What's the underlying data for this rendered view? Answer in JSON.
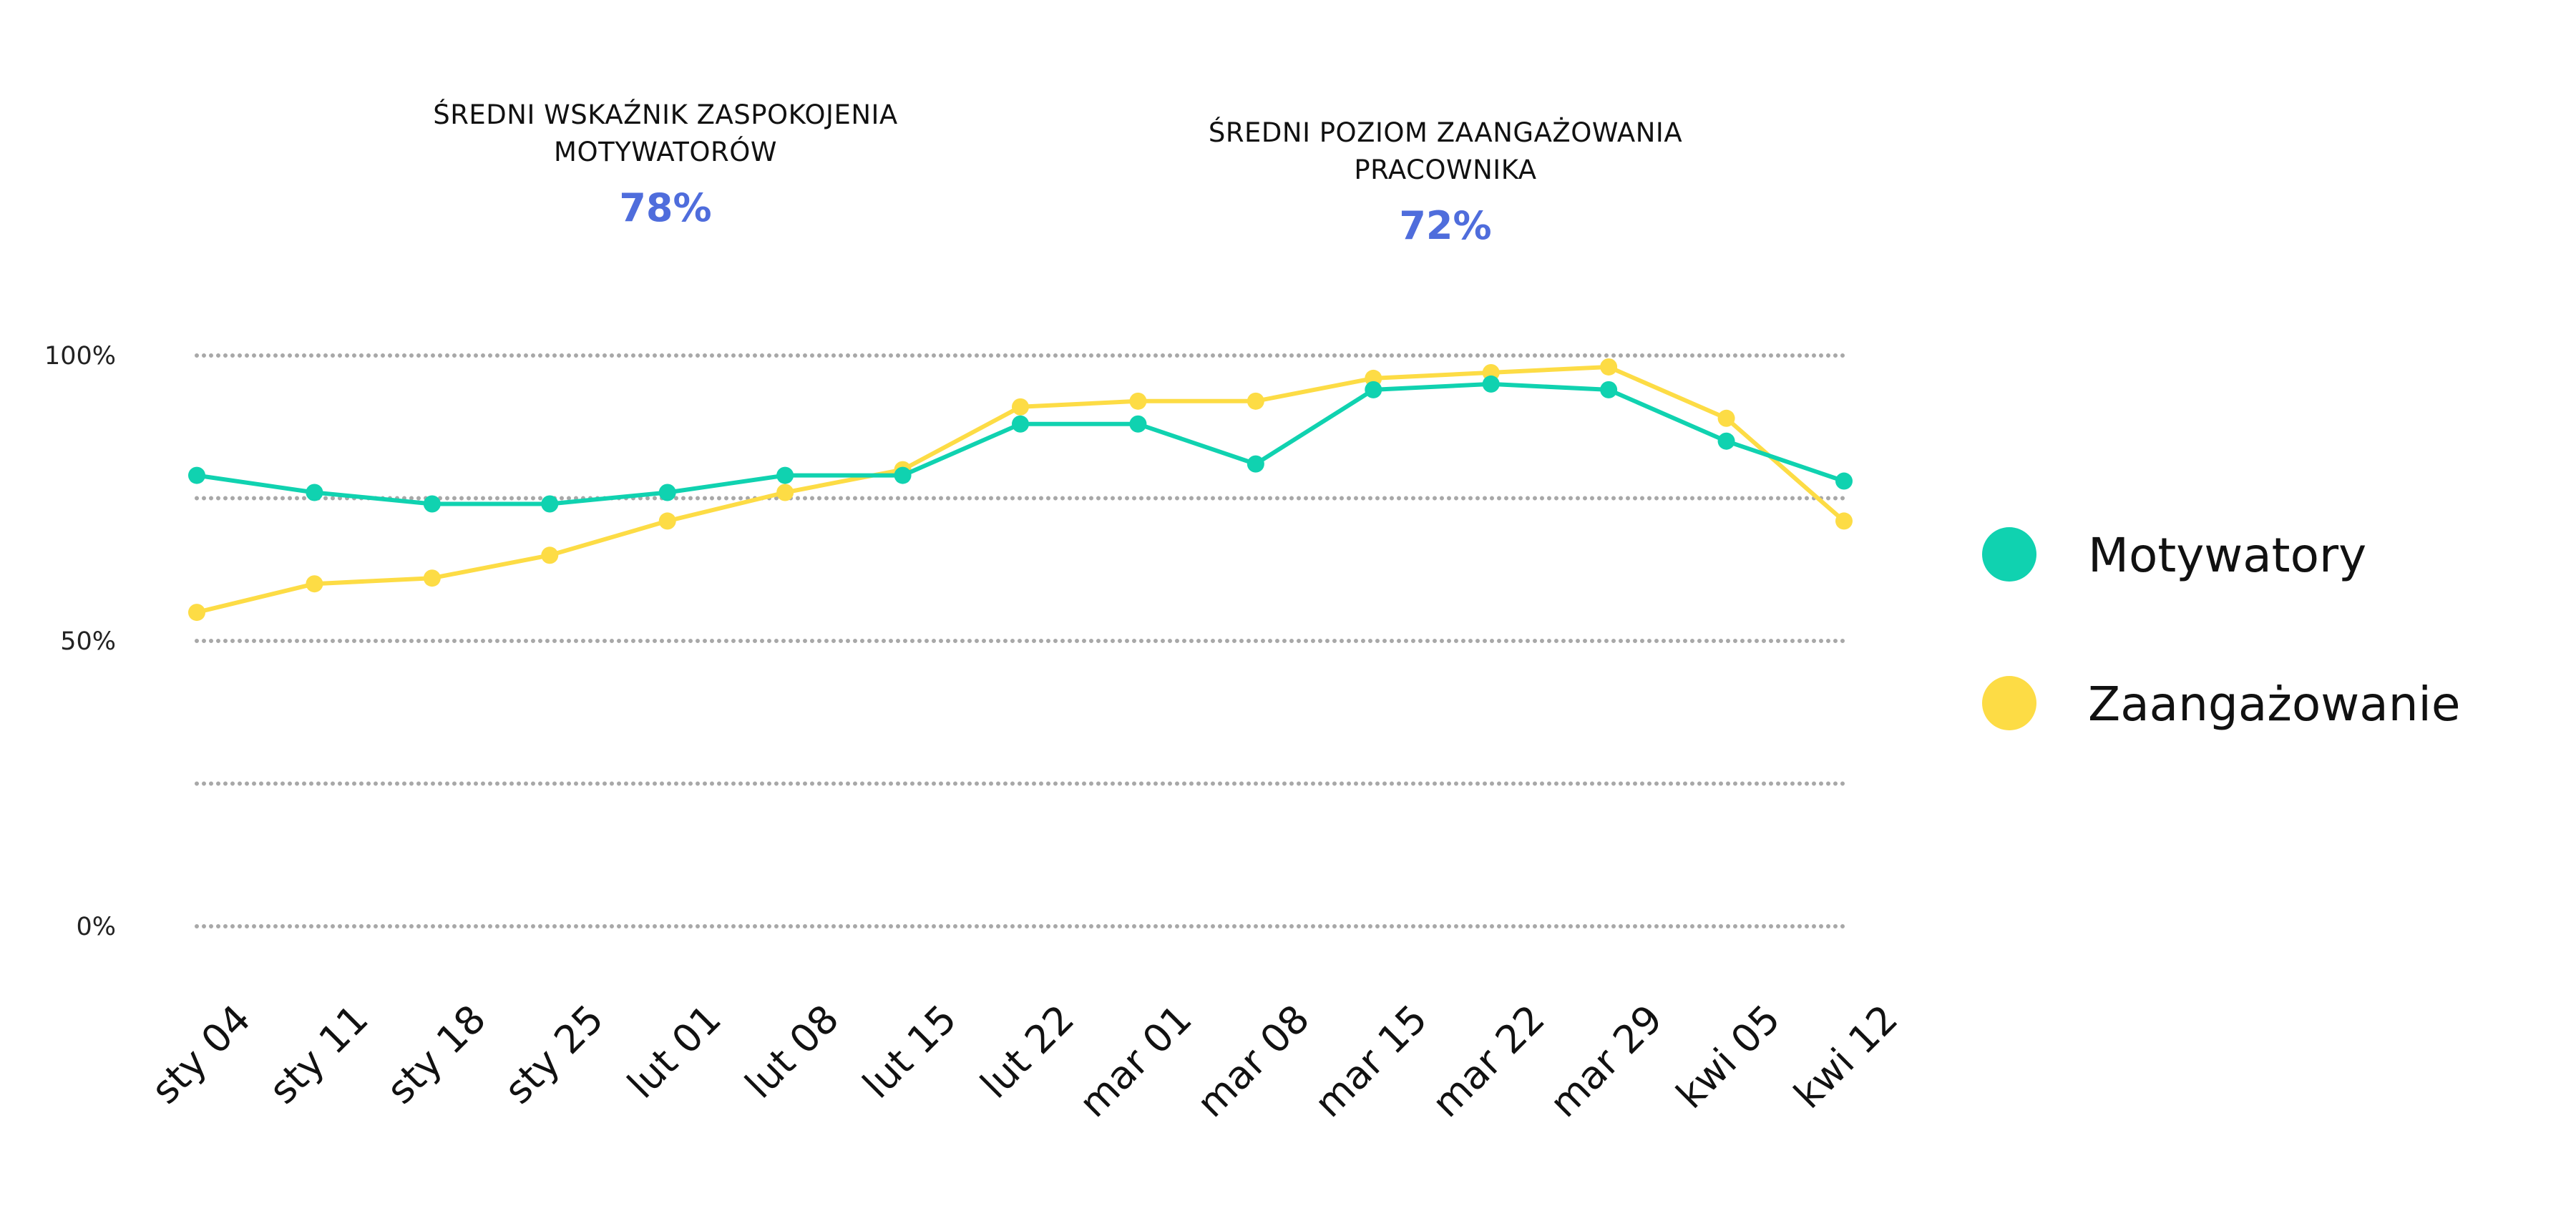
{
  "header": {
    "stat1": {
      "title": "ŚREDNI WSKAŹNIK ZASPOKOJENIA\nMOTYWATORÓW",
      "value": "78%"
    },
    "stat2": {
      "title": "ŚREDNI POZIOM ZAANGAŻOWANIA\nPRACOWNIKA",
      "value": "72%"
    }
  },
  "colors": {
    "accent": "#4f6ddc",
    "motywatory": "#10d2b0",
    "zaangazowanie": "#fddc45",
    "grid": "#a8a8a8"
  },
  "chart_data": {
    "type": "line",
    "title": "",
    "xlabel": "",
    "ylabel": "",
    "ylim": [
      0,
      100
    ],
    "yticks": [
      {
        "value": 0,
        "label": "0%"
      },
      {
        "value": 25,
        "label": ""
      },
      {
        "value": 50,
        "label": "50%"
      },
      {
        "value": 75,
        "label": ""
      },
      {
        "value": 100,
        "label": "100%"
      }
    ],
    "grid": true,
    "grid_style": "dotted",
    "legend_position": "right",
    "categories": [
      "sty 04",
      "sty 11",
      "sty 18",
      "sty 25",
      "lut 01",
      "lut 08",
      "lut 15",
      "lut 22",
      "mar 01",
      "mar 08",
      "mar 15",
      "mar 22",
      "mar 29",
      "kwi 05",
      "kwi 12"
    ],
    "series": [
      {
        "name": "Motywatory",
        "color": "#10d2b0",
        "values": [
          79,
          76,
          74,
          74,
          76,
          79,
          79,
          88,
          88,
          81,
          94,
          95,
          94,
          85,
          78
        ]
      },
      {
        "name": "Zaangażowanie",
        "color": "#fddc45",
        "values": [
          55,
          60,
          61,
          65,
          71,
          76,
          80,
          91,
          92,
          92,
          96,
          97,
          98,
          89,
          71
        ]
      }
    ]
  }
}
